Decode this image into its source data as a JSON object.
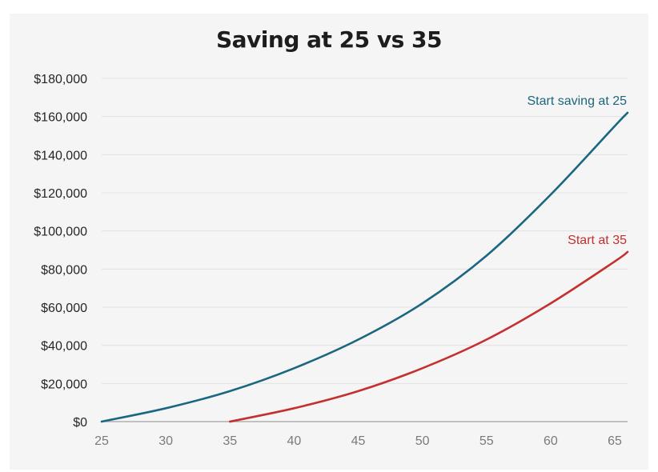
{
  "chart_data": {
    "type": "line",
    "title": "Saving at 25 vs 35",
    "xlabel": "",
    "ylabel": "",
    "xlim": [
      25,
      66
    ],
    "ylim": [
      0,
      180000
    ],
    "grid": true,
    "y_ticks": [
      0,
      20000,
      40000,
      60000,
      80000,
      100000,
      120000,
      140000,
      160000,
      180000
    ],
    "y_tick_labels": [
      "$0",
      "$20,000",
      "$40,000",
      "$60,000",
      "$80,000",
      "$100,000",
      "$120,000",
      "$140,000",
      "$160,000",
      "$180,000"
    ],
    "x_ticks": [
      25,
      30,
      35,
      40,
      45,
      50,
      55,
      60,
      65
    ],
    "x_tick_labels": [
      "25",
      "30",
      "35",
      "40",
      "45",
      "50",
      "55",
      "60",
      "65"
    ],
    "series": [
      {
        "name": "Start saving at 25",
        "color": "#1b6680",
        "x": [
          25,
          30,
          35,
          40,
          45,
          50,
          55,
          60,
          65,
          66
        ],
        "y": [
          0,
          7000,
          16000,
          28000,
          43000,
          62000,
          87000,
          119000,
          155000,
          162000
        ]
      },
      {
        "name": "Start at 35",
        "color": "#c4302f",
        "x": [
          35,
          40,
          45,
          50,
          55,
          60,
          65,
          66
        ],
        "y": [
          0,
          7000,
          16000,
          28000,
          43000,
          62000,
          84000,
          89000
        ]
      }
    ]
  }
}
